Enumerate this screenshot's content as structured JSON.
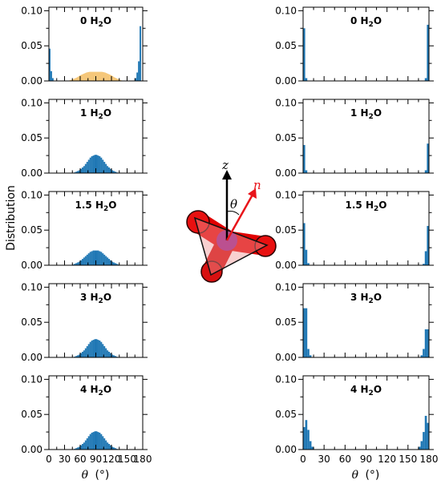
{
  "figure": {
    "ylabel": "Distribution",
    "xlabel_symbol": "θ",
    "xlabel_unit": "(°)",
    "xlim": [
      0,
      180
    ],
    "ylim": [
      0,
      0.105
    ],
    "x_ticks": [
      0,
      30,
      60,
      90,
      120,
      150,
      180
    ],
    "y_ticks": [
      "0.00",
      "0.05",
      "0.10"
    ],
    "colors": {
      "bars": "#1f77b4",
      "overlay": "#f5c77a",
      "arrow_n": "#e8141a",
      "arrow_z": "#000000"
    }
  },
  "diagram": {
    "z_label": "z",
    "n_label": "n",
    "theta_label": "θ"
  },
  "chart_data": [
    {
      "type": "bar",
      "column": "left",
      "row": 0,
      "title": "0 H2O",
      "title_main": "0 H",
      "title_sub": "2",
      "title_end": "O",
      "bin_width": 3,
      "bins": [
        [
          0,
          0.046
        ],
        [
          3,
          0.014
        ],
        [
          6,
          0.004
        ],
        [
          165,
          0.004
        ],
        [
          168,
          0.012
        ],
        [
          171,
          0.028
        ],
        [
          174,
          0.078
        ]
      ],
      "overlay": {
        "type": "area",
        "x": [
          36,
          45,
          54,
          60,
          66,
          72,
          78,
          84,
          90,
          96,
          102,
          108,
          114,
          120,
          126,
          132,
          138,
          144
        ],
        "y": [
          0,
          0.002,
          0.005,
          0.008,
          0.01,
          0.012,
          0.013,
          0.013,
          0.013,
          0.013,
          0.013,
          0.012,
          0.01,
          0.008,
          0.005,
          0.003,
          0.001,
          0
        ]
      }
    },
    {
      "type": "bar",
      "column": "left",
      "row": 1,
      "title": "1 H2O",
      "title_main": "1 H",
      "title_sub": "2",
      "title_end": "O",
      "bin_width": 3,
      "bins": [
        [
          48,
          0.001
        ],
        [
          51,
          0.002
        ],
        [
          54,
          0.003
        ],
        [
          57,
          0.004
        ],
        [
          60,
          0.006
        ],
        [
          63,
          0.008
        ],
        [
          66,
          0.01
        ],
        [
          69,
          0.013
        ],
        [
          72,
          0.016
        ],
        [
          75,
          0.019
        ],
        [
          78,
          0.022
        ],
        [
          81,
          0.024
        ],
        [
          84,
          0.025
        ],
        [
          87,
          0.026
        ],
        [
          90,
          0.026
        ],
        [
          93,
          0.025
        ],
        [
          96,
          0.024
        ],
        [
          99,
          0.022
        ],
        [
          102,
          0.019
        ],
        [
          105,
          0.016
        ],
        [
          108,
          0.013
        ],
        [
          111,
          0.01
        ],
        [
          114,
          0.008
        ],
        [
          117,
          0.006
        ],
        [
          120,
          0.004
        ],
        [
          123,
          0.003
        ],
        [
          126,
          0.002
        ],
        [
          129,
          0.001
        ]
      ]
    },
    {
      "type": "bar",
      "column": "left",
      "row": 2,
      "title": "1.5 H2O",
      "title_main": "1.5 H",
      "title_sub": "2",
      "title_end": "O",
      "bin_width": 3,
      "bins": [
        [
          45,
          0.001
        ],
        [
          48,
          0.002
        ],
        [
          51,
          0.003
        ],
        [
          54,
          0.004
        ],
        [
          57,
          0.005
        ],
        [
          60,
          0.007
        ],
        [
          63,
          0.009
        ],
        [
          66,
          0.011
        ],
        [
          69,
          0.013
        ],
        [
          72,
          0.015
        ],
        [
          75,
          0.017
        ],
        [
          78,
          0.019
        ],
        [
          81,
          0.02
        ],
        [
          84,
          0.021
        ],
        [
          87,
          0.021
        ],
        [
          90,
          0.021
        ],
        [
          93,
          0.021
        ],
        [
          96,
          0.02
        ],
        [
          99,
          0.019
        ],
        [
          102,
          0.017
        ],
        [
          105,
          0.015
        ],
        [
          108,
          0.013
        ],
        [
          111,
          0.011
        ],
        [
          114,
          0.009
        ],
        [
          117,
          0.007
        ],
        [
          120,
          0.005
        ],
        [
          123,
          0.004
        ],
        [
          126,
          0.003
        ],
        [
          129,
          0.002
        ],
        [
          132,
          0.001
        ]
      ]
    },
    {
      "type": "bar",
      "column": "left",
      "row": 3,
      "title": "3 H2O",
      "title_main": "3 H",
      "title_sub": "2",
      "title_end": "O",
      "bin_width": 3,
      "bins": [
        [
          48,
          0.001
        ],
        [
          51,
          0.002
        ],
        [
          54,
          0.003
        ],
        [
          57,
          0.004
        ],
        [
          60,
          0.006
        ],
        [
          63,
          0.008
        ],
        [
          66,
          0.01
        ],
        [
          69,
          0.013
        ],
        [
          72,
          0.016
        ],
        [
          75,
          0.019
        ],
        [
          78,
          0.022
        ],
        [
          81,
          0.024
        ],
        [
          84,
          0.025
        ],
        [
          87,
          0.026
        ],
        [
          90,
          0.026
        ],
        [
          93,
          0.025
        ],
        [
          96,
          0.024
        ],
        [
          99,
          0.022
        ],
        [
          102,
          0.019
        ],
        [
          105,
          0.016
        ],
        [
          108,
          0.013
        ],
        [
          111,
          0.01
        ],
        [
          114,
          0.008
        ],
        [
          117,
          0.006
        ],
        [
          120,
          0.004
        ],
        [
          123,
          0.003
        ],
        [
          126,
          0.002
        ],
        [
          129,
          0.001
        ]
      ]
    },
    {
      "type": "bar",
      "column": "left",
      "row": 4,
      "title": "4 H2O",
      "title_main": "4 H",
      "title_sub": "2",
      "title_end": "O",
      "bin_width": 3,
      "bins": [
        [
          48,
          0.001
        ],
        [
          51,
          0.002
        ],
        [
          54,
          0.003
        ],
        [
          57,
          0.004
        ],
        [
          60,
          0.006
        ],
        [
          63,
          0.008
        ],
        [
          66,
          0.01
        ],
        [
          69,
          0.013
        ],
        [
          72,
          0.016
        ],
        [
          75,
          0.019
        ],
        [
          78,
          0.022
        ],
        [
          81,
          0.024
        ],
        [
          84,
          0.025
        ],
        [
          87,
          0.026
        ],
        [
          90,
          0.026
        ],
        [
          93,
          0.025
        ],
        [
          96,
          0.024
        ],
        [
          99,
          0.022
        ],
        [
          102,
          0.019
        ],
        [
          105,
          0.016
        ],
        [
          108,
          0.013
        ],
        [
          111,
          0.01
        ],
        [
          114,
          0.008
        ],
        [
          117,
          0.006
        ],
        [
          120,
          0.004
        ],
        [
          123,
          0.003
        ],
        [
          126,
          0.002
        ],
        [
          129,
          0.001
        ]
      ]
    },
    {
      "type": "bar",
      "column": "right",
      "row": 0,
      "title": "0 H2O",
      "title_main": "0 H",
      "title_sub": "2",
      "title_end": "O",
      "bin_width": 3,
      "bins": [
        [
          0,
          0.075
        ],
        [
          3,
          0.004
        ],
        [
          174,
          0.004
        ],
        [
          177,
          0.08
        ]
      ]
    },
    {
      "type": "bar",
      "column": "right",
      "row": 1,
      "title": "1 H2O",
      "title_main": "1 H",
      "title_sub": "2",
      "title_end": "O",
      "bin_width": 3,
      "bins": [
        [
          0,
          0.04
        ],
        [
          3,
          0.004
        ],
        [
          174,
          0.004
        ],
        [
          177,
          0.042
        ]
      ]
    },
    {
      "type": "bar",
      "column": "right",
      "row": 2,
      "title": "1.5 H2O",
      "title_main": "1.5 H",
      "title_sub": "2",
      "title_end": "O",
      "bin_width": 3,
      "bins": [
        [
          0,
          0.06
        ],
        [
          3,
          0.022
        ],
        [
          6,
          0.003
        ],
        [
          171,
          0.002
        ],
        [
          174,
          0.02
        ],
        [
          177,
          0.056
        ]
      ]
    },
    {
      "type": "bar",
      "column": "right",
      "row": 3,
      "title": "3 H2O",
      "title_main": "3 H",
      "title_sub": "2",
      "title_end": "O",
      "bin_width": 3,
      "bins": [
        [
          0,
          0.07
        ],
        [
          3,
          0.07
        ],
        [
          6,
          0.012
        ],
        [
          9,
          0.003
        ],
        [
          168,
          0.003
        ],
        [
          171,
          0.012
        ],
        [
          174,
          0.04
        ],
        [
          177,
          0.04
        ]
      ]
    },
    {
      "type": "bar",
      "column": "right",
      "row": 4,
      "title": "4 H2O",
      "title_main": "4 H",
      "title_sub": "2",
      "title_end": "O",
      "bin_width": 3,
      "bins": [
        [
          0,
          0.032
        ],
        [
          3,
          0.042
        ],
        [
          6,
          0.028
        ],
        [
          9,
          0.012
        ],
        [
          12,
          0.004
        ],
        [
          165,
          0.004
        ],
        [
          168,
          0.012
        ],
        [
          171,
          0.025
        ],
        [
          174,
          0.048
        ],
        [
          177,
          0.038
        ]
      ]
    }
  ]
}
